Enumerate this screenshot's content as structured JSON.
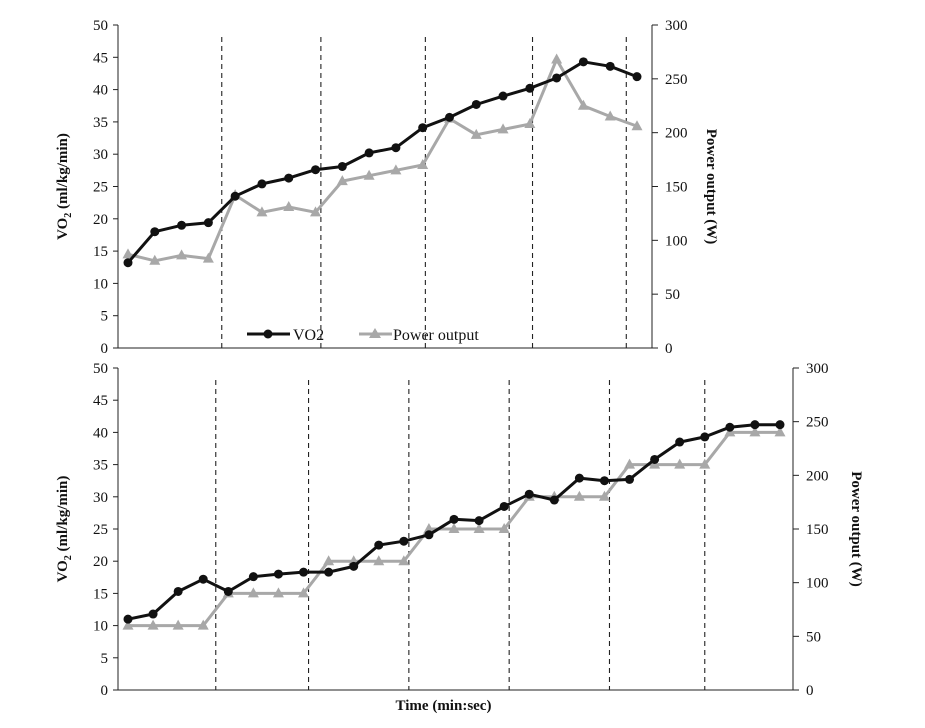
{
  "colors": {
    "vo2": "#111111",
    "power": "#a8a8a8",
    "axis": "#222222",
    "divider": "#222222"
  },
  "chart_data": [
    {
      "type": "line",
      "title": "",
      "xlabel": "",
      "ylabel": "VO",
      "ylabel_sub": "2",
      "ylabel_rest": " (ml/kg/min)",
      "y2label": "Power output (W)",
      "ylim": [
        0,
        50
      ],
      "y2lim": [
        0,
        300
      ],
      "yticks": [
        "0",
        "5",
        "10",
        "15",
        "20",
        "25",
        "30",
        "35",
        "40",
        "45",
        "50"
      ],
      "y2ticks": [
        "0",
        "50",
        "100",
        "150",
        "200",
        "250",
        "300"
      ],
      "n_points": 20,
      "grid": false,
      "legend_position": "bottom-center",
      "vertical_dividers_after_index": [
        3.5,
        7.2,
        11.1,
        15.1,
        18.6
      ],
      "series": [
        {
          "name": "VO2",
          "axis": "left",
          "marker": "circle",
          "values": [
            13.2,
            18.0,
            19.0,
            19.4,
            23.5,
            25.4,
            26.3,
            27.6,
            28.1,
            30.2,
            31.0,
            34.1,
            35.7,
            37.7,
            39.0,
            40.2,
            41.8,
            44.3,
            43.6,
            42.0
          ]
        },
        {
          "name": "Power output",
          "axis": "right",
          "marker": "triangle",
          "values": [
            87,
            81,
            86,
            83,
            142,
            126,
            131,
            126,
            155,
            160,
            165,
            170,
            213,
            198,
            203,
            208,
            268,
            225,
            215,
            206
          ]
        }
      ]
    },
    {
      "type": "line",
      "title": "",
      "xlabel": "Time (min:sec)",
      "ylabel": "VO",
      "ylabel_sub": "2",
      "ylabel_rest": " (ml/kg/min)",
      "y2label": "Power output (W)",
      "ylim": [
        0,
        50
      ],
      "y2lim": [
        0,
        300
      ],
      "yticks": [
        "0",
        "5",
        "10",
        "15",
        "20",
        "25",
        "30",
        "35",
        "40",
        "45",
        "50"
      ],
      "y2ticks": [
        "0",
        "50",
        "100",
        "150",
        "200",
        "250",
        "300"
      ],
      "n_points": 27,
      "grid": false,
      "vertical_dividers_after_index": [
        3.5,
        7.2,
        11.2,
        15.2,
        19.2,
        23.0
      ],
      "series": [
        {
          "name": "VO2",
          "axis": "left",
          "marker": "circle",
          "values": [
            11.0,
            11.8,
            15.3,
            17.2,
            15.3,
            17.6,
            18.0,
            18.3,
            18.3,
            19.2,
            22.5,
            23.1,
            24.1,
            26.5,
            26.3,
            28.5,
            30.4,
            29.5,
            32.9,
            32.5,
            32.7,
            35.8,
            38.5,
            39.3,
            40.8,
            41.2,
            41.2
          ]
        },
        {
          "name": "Power output",
          "axis": "right",
          "marker": "triangle",
          "values": [
            60,
            60,
            60,
            60,
            90,
            90,
            90,
            90,
            120,
            120,
            120,
            120,
            150,
            150,
            150,
            150,
            180,
            180,
            180,
            180,
            210,
            210,
            210,
            210,
            240,
            240,
            240
          ]
        }
      ]
    }
  ],
  "legend": {
    "items": [
      "VO2",
      "Power output"
    ]
  }
}
